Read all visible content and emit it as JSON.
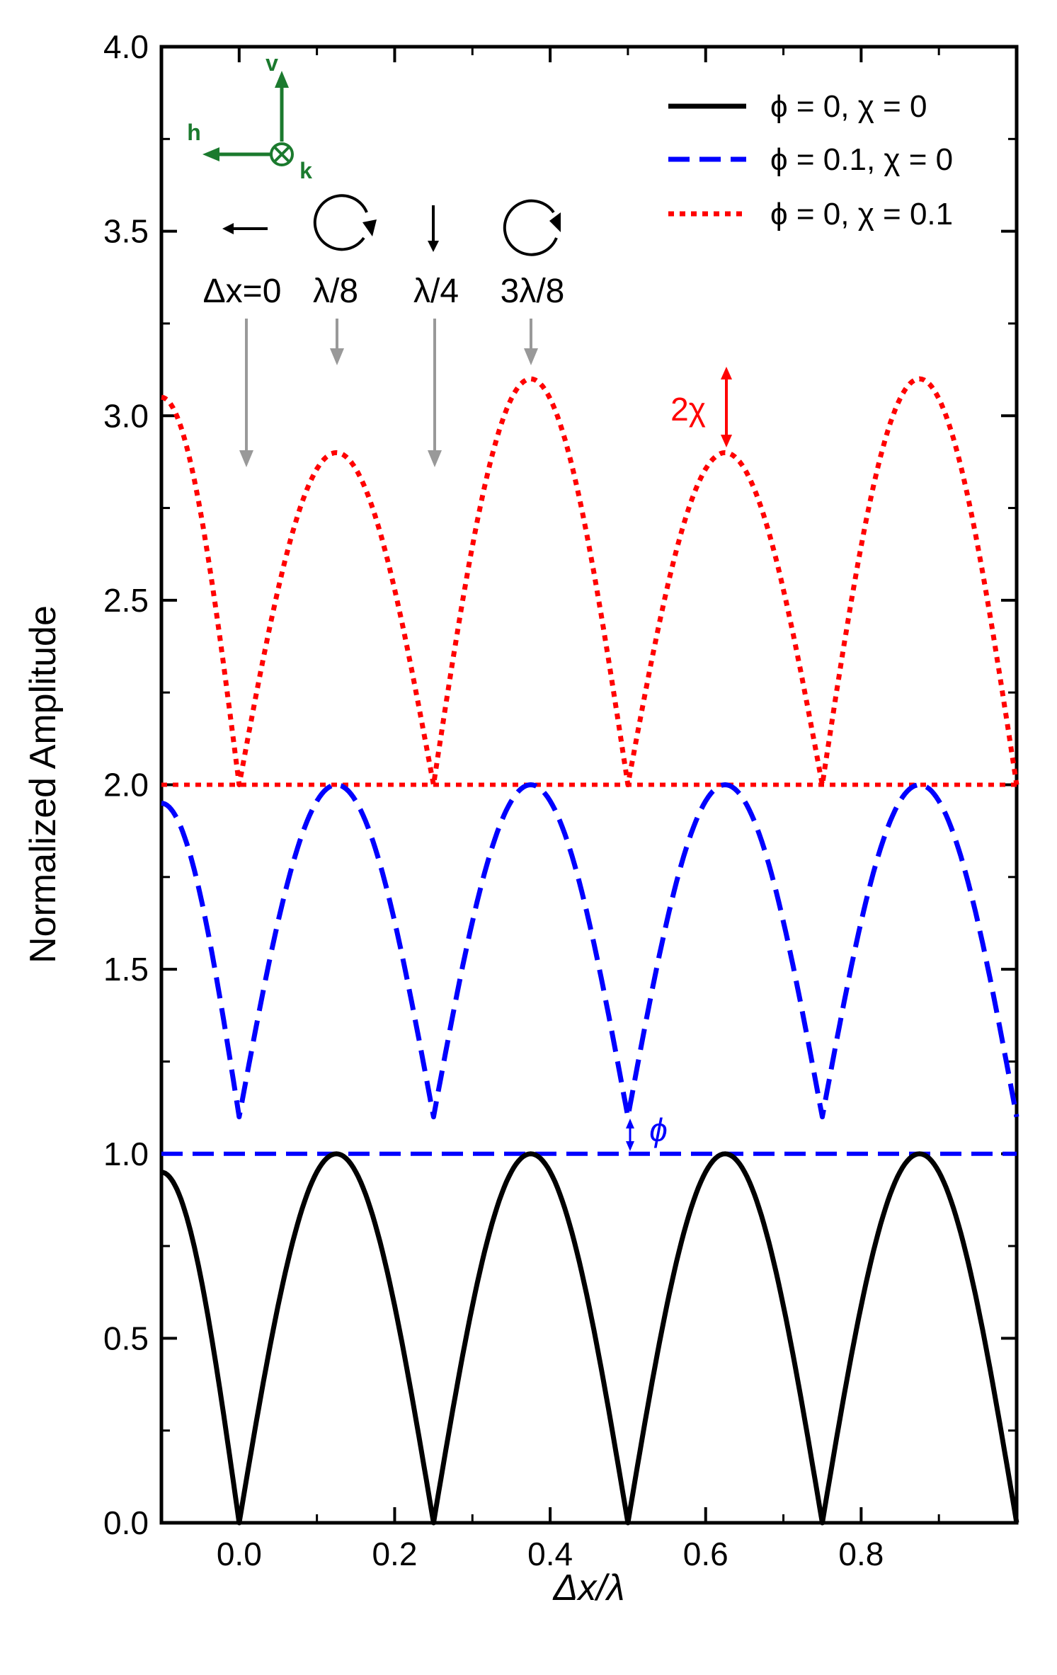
{
  "chart_data": {
    "type": "line",
    "title": "",
    "xlabel": "Δx/λ",
    "ylabel": "Normalized Amplitude",
    "xlim": [
      -0.1,
      1.0
    ],
    "ylim": [
      0.0,
      4.0
    ],
    "x_ticks": [
      "0.0",
      "0.2",
      "0.4",
      "0.6",
      "0.8"
    ],
    "x_tick_values": [
      0.0,
      0.2,
      0.4,
      0.6,
      0.8
    ],
    "y_ticks": [
      "0.0",
      "0.5",
      "1.0",
      "1.5",
      "2.0",
      "2.5",
      "3.0",
      "3.5",
      "4.0"
    ],
    "y_tick_values": [
      0.0,
      0.5,
      1.0,
      1.5,
      2.0,
      2.5,
      3.0,
      3.5,
      4.0
    ],
    "grid": false,
    "legend_position": "top-right",
    "series": [
      {
        "name": "ϕ = 0, χ = 0",
        "color": "#000000",
        "style": "solid",
        "x": [
          -0.1,
          0.0,
          0.125,
          0.25,
          0.375,
          0.5,
          0.625,
          0.75,
          0.875,
          1.0
        ],
        "y": [
          0.95,
          0.0,
          1.0,
          0.0,
          1.0,
          0.0,
          1.0,
          0.0,
          1.0,
          0.0
        ]
      },
      {
        "name": "ϕ = 0.1, χ = 0",
        "color": "#0000ff",
        "style": "dashed",
        "x": [
          -0.1,
          0.0,
          0.125,
          0.25,
          0.375,
          0.5,
          0.625,
          0.75,
          0.875,
          1.0
        ],
        "y": [
          1.95,
          1.1,
          2.0,
          1.1,
          2.0,
          1.1,
          2.0,
          1.1,
          2.0,
          1.1
        ]
      },
      {
        "name": "ϕ = 0, χ = 0.1",
        "color": "#ff0000",
        "style": "dotted",
        "x": [
          -0.1,
          0.0,
          0.125,
          0.25,
          0.375,
          0.5,
          0.625,
          0.75,
          0.875,
          1.0
        ],
        "y": [
          3.05,
          2.0,
          2.9,
          2.0,
          3.1,
          2.0,
          2.9,
          2.0,
          3.1,
          2.0
        ]
      }
    ],
    "reference_lines": [
      {
        "y": 1.0,
        "color": "#0000ff",
        "style": "dashed"
      },
      {
        "y": 2.0,
        "color": "#ff0000",
        "style": "dotted"
      }
    ],
    "annotations": {
      "polarization_labels": [
        "Δx=0",
        "λ/8",
        "λ/4",
        "3λ/8"
      ],
      "polarization_x": [
        0.0,
        0.125,
        0.25,
        0.375
      ],
      "chi_label": "2χ",
      "phi_label": "ϕ",
      "axes_labels": {
        "v": "v",
        "h": "h",
        "k": "k"
      }
    },
    "colors": {
      "axes_icon": "#1b7a2e",
      "guide_arrow": "#999999",
      "annotation_red": "#ff0000",
      "annotation_blue": "#0000ff"
    }
  }
}
